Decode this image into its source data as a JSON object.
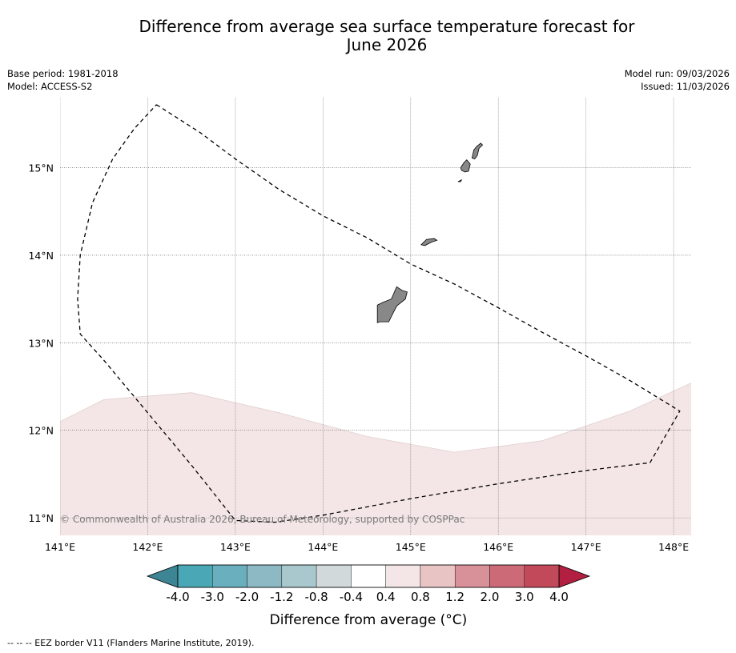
{
  "title_line1": "Difference from average sea surface temperature forecast for",
  "title_line2": "June 2026",
  "meta": {
    "base_period": "Base period: 1981-2018",
    "model": "Model: ACCESS-S2",
    "model_run": "Model run: 09/03/2026",
    "issued": "Issued: 11/03/2026"
  },
  "copyright": "© Commonwealth of Australia 2026, Bureau of Meteorology, supported by COSPPac",
  "footnote": "--  --  -- EEZ border V11 (Flanders Marine Institute, 2019).",
  "colors": {
    "land": "#888888",
    "anomaly_0_4_to_0_8": "#f4e6e6",
    "eez": "#000000"
  },
  "chart_data": {
    "type": "heatmap",
    "title": "Difference from average sea surface temperature forecast for June 2026",
    "xlabel": "",
    "ylabel": "",
    "x_ticks": [
      {
        "value": 141,
        "label": "141°E"
      },
      {
        "value": 142,
        "label": "142°E"
      },
      {
        "value": 143,
        "label": "143°E"
      },
      {
        "value": 144,
        "label": "144°E"
      },
      {
        "value": 145,
        "label": "145°E"
      },
      {
        "value": 146,
        "label": "146°E"
      },
      {
        "value": 147,
        "label": "147°E"
      },
      {
        "value": 148,
        "label": "148°E"
      }
    ],
    "y_ticks": [
      {
        "value": 11,
        "label": "11°N"
      },
      {
        "value": 12,
        "label": "12°N"
      },
      {
        "value": 13,
        "label": "13°N"
      },
      {
        "value": 14,
        "label": "14°N"
      },
      {
        "value": 15,
        "label": "15°N"
      }
    ],
    "xlim": [
      141,
      148.2
    ],
    "ylim": [
      10.8,
      15.8
    ],
    "anomaly_region": {
      "range_label": "0.4 to 0.8",
      "northern_boundary": [
        [
          141.0,
          12.1
        ],
        [
          141.5,
          12.35
        ],
        [
          142.5,
          12.43
        ],
        [
          143.5,
          12.2
        ],
        [
          144.5,
          11.93
        ],
        [
          145.5,
          11.75
        ],
        [
          146.5,
          11.88
        ],
        [
          147.5,
          12.22
        ],
        [
          148.2,
          12.54
        ]
      ]
    },
    "eez_boundary": [
      [
        142.1,
        15.72
      ],
      [
        142.6,
        15.4
      ],
      [
        143.0,
        15.1
      ],
      [
        143.5,
        14.75
      ],
      [
        144.0,
        14.45
      ],
      [
        144.5,
        14.2
      ],
      [
        145.0,
        13.9
      ],
      [
        145.5,
        13.67
      ],
      [
        146.0,
        13.4
      ],
      [
        146.5,
        13.12
      ],
      [
        147.0,
        12.85
      ],
      [
        147.5,
        12.57
      ],
      [
        148.07,
        12.22
      ],
      [
        147.73,
        11.63
      ],
      [
        147.0,
        11.54
      ],
      [
        146.0,
        11.39
      ],
      [
        145.0,
        11.22
      ],
      [
        144.0,
        11.03
      ],
      [
        143.45,
        10.95
      ],
      [
        143.0,
        10.97
      ],
      [
        142.5,
        11.6
      ],
      [
        142.0,
        12.2
      ],
      [
        141.5,
        12.8
      ],
      [
        141.23,
        13.1
      ],
      [
        141.2,
        13.5
      ],
      [
        141.23,
        14.0
      ],
      [
        141.37,
        14.6
      ],
      [
        141.6,
        15.1
      ],
      [
        141.85,
        15.45
      ],
      [
        142.1,
        15.72
      ]
    ],
    "islands": [
      {
        "name": "Guam",
        "outline": [
          [
            144.62,
            13.23
          ],
          [
            144.62,
            13.43
          ],
          [
            144.68,
            13.46
          ],
          [
            144.78,
            13.5
          ],
          [
            144.84,
            13.64
          ],
          [
            144.9,
            13.6
          ],
          [
            144.96,
            13.58
          ],
          [
            144.94,
            13.5
          ],
          [
            144.84,
            13.42
          ],
          [
            144.78,
            13.3
          ],
          [
            144.75,
            13.24
          ],
          [
            144.65,
            13.24
          ]
        ]
      },
      {
        "name": "Rota",
        "outline": [
          [
            145.12,
            14.12
          ],
          [
            145.18,
            14.18
          ],
          [
            145.27,
            14.19
          ],
          [
            145.3,
            14.17
          ],
          [
            145.24,
            14.15
          ],
          [
            145.16,
            14.11
          ]
        ]
      },
      {
        "name": "Tinian",
        "outline": [
          [
            145.57,
            15.0
          ],
          [
            145.61,
            15.06
          ],
          [
            145.64,
            15.09
          ],
          [
            145.68,
            15.04
          ],
          [
            145.66,
            14.96
          ],
          [
            145.62,
            14.95
          ],
          [
            145.58,
            14.97
          ]
        ]
      },
      {
        "name": "Saipan",
        "outline": [
          [
            145.7,
            15.11
          ],
          [
            145.72,
            15.2
          ],
          [
            145.75,
            15.24
          ],
          [
            145.8,
            15.28
          ],
          [
            145.82,
            15.26
          ],
          [
            145.78,
            15.22
          ],
          [
            145.76,
            15.14
          ],
          [
            145.73,
            15.1
          ]
        ]
      },
      {
        "name": "Aguijan",
        "outline": [
          [
            145.54,
            14.84
          ],
          [
            145.58,
            14.86
          ],
          [
            145.57,
            14.84
          ]
        ]
      }
    ],
    "colorbar": {
      "label": "Difference from average (°C)",
      "ticks": [
        "-4.0",
        "-3.0",
        "-2.0",
        "-1.2",
        "-0.8",
        "-0.4",
        "0.4",
        "0.8",
        "1.2",
        "2.0",
        "3.0",
        "4.0"
      ],
      "under_color": "#3d8595",
      "over_color": "#b21f41",
      "colors": [
        "#4aa7b5",
        "#6aafbd",
        "#8cb9c4",
        "#a8c8cd",
        "#d1d9db",
        "#ffffff",
        "#f4e6e6",
        "#e9c4c4",
        "#d99199",
        "#cc6b77",
        "#c24959"
      ]
    }
  }
}
